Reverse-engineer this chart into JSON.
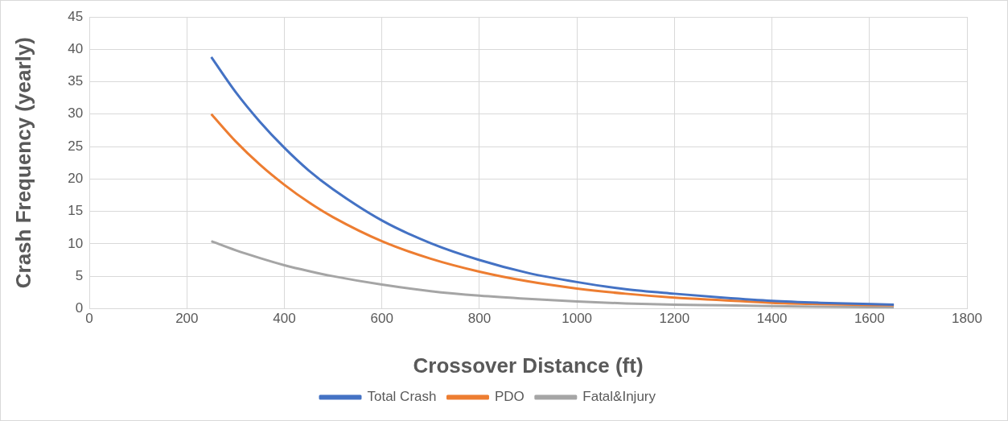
{
  "chart_data": {
    "type": "line",
    "xlabel": "Crossover Distance (ft)",
    "ylabel": "Crash Frequency (yearly)",
    "xlim": [
      0,
      1800
    ],
    "xticks": [
      0,
      200,
      400,
      600,
      800,
      1000,
      1200,
      1400,
      1600,
      1800
    ],
    "ylim": [
      0,
      45
    ],
    "yticks": [
      0,
      5,
      10,
      15,
      20,
      25,
      30,
      35,
      40,
      45
    ],
    "x": [
      250,
      300,
      350,
      400,
      450,
      500,
      600,
      700,
      800,
      900,
      1000,
      1100,
      1200,
      1300,
      1400,
      1500,
      1650
    ],
    "series": [
      {
        "name": "Total Crash",
        "color": "#4472c4",
        "values": [
          38.8,
          33.4,
          28.8,
          24.8,
          21.3,
          18.4,
          13.6,
          10.1,
          7.5,
          5.5,
          4.1,
          3.0,
          2.3,
          1.7,
          1.2,
          0.9,
          0.6
        ]
      },
      {
        "name": "PDO",
        "color": "#ed7d31",
        "values": [
          30,
          25.8,
          22.2,
          19.1,
          16.4,
          14.1,
          10.4,
          7.7,
          5.7,
          4.2,
          3.1,
          2.3,
          1.7,
          1.3,
          0.9,
          0.7,
          0.5
        ]
      },
      {
        "name": "Fatal&Injury",
        "color": "#a5a5a5",
        "values": [
          10.4,
          9.0,
          7.8,
          6.7,
          5.8,
          5.0,
          3.7,
          2.7,
          2.0,
          1.5,
          1.1,
          0.8,
          0.6,
          0.5,
          0.4,
          0.3,
          0.2
        ]
      }
    ],
    "grid": true,
    "legend": "bottom",
    "marker": "none",
    "line_style": "solid"
  }
}
